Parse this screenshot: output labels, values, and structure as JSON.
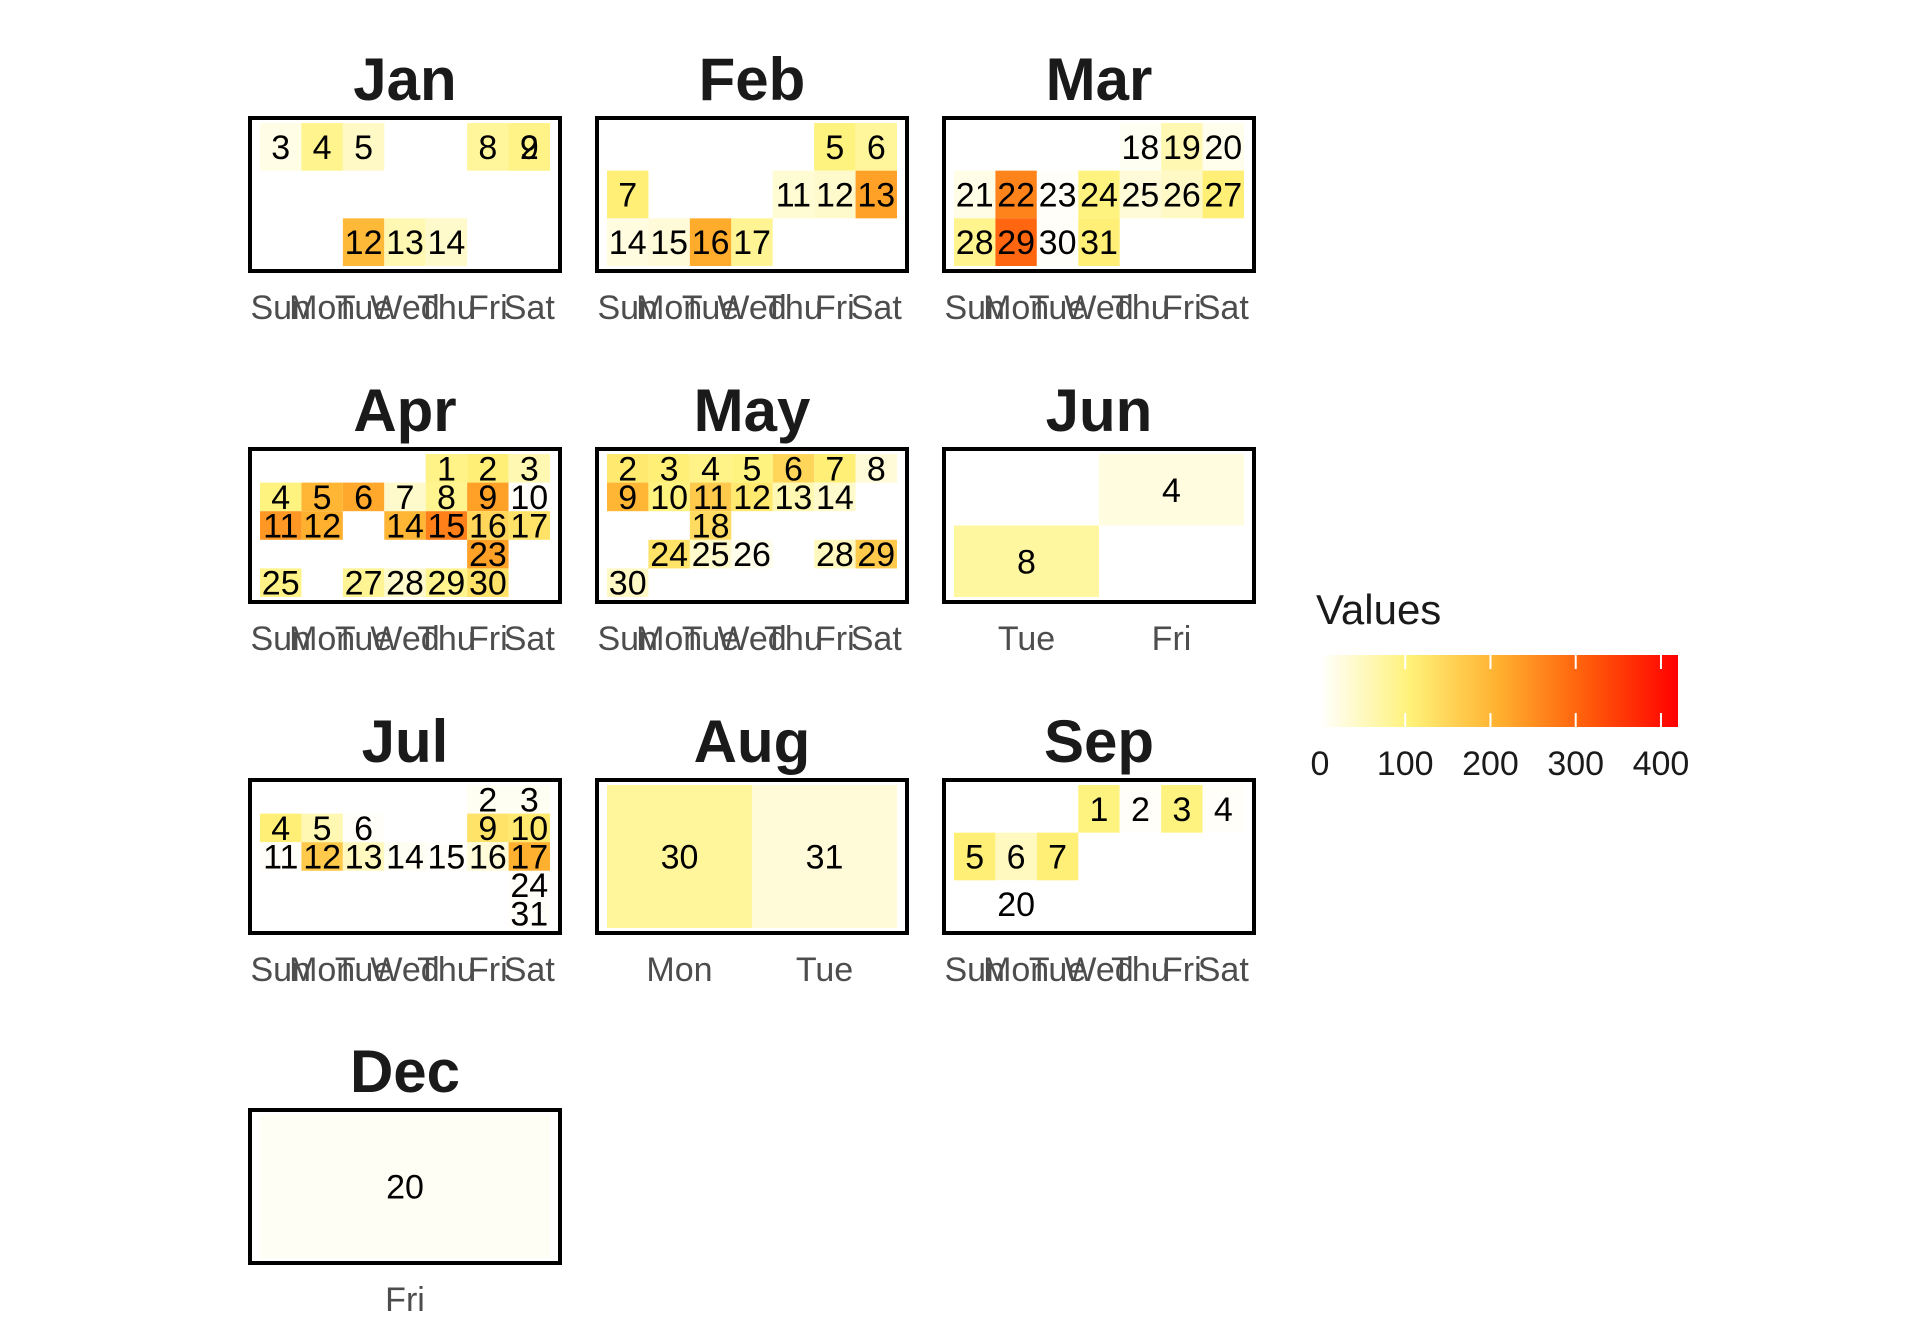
{
  "chart_data": {
    "type": "heatmap",
    "title": "",
    "legend": {
      "title": "Values",
      "ticks": [
        0,
        100,
        200,
        300,
        400
      ],
      "range": [
        0,
        420
      ],
      "position": "right",
      "colors": [
        "#FFFFFF",
        "#FFF27A",
        "#FFB02E",
        "#FF5A0A",
        "#FF0000"
      ]
    },
    "months": [
      {
        "name": "Jan",
        "xticks": [
          "Sun",
          "Mon",
          "Tue",
          "Wed",
          "Thu",
          "Fri",
          "Sat"
        ],
        "cells": [
          {
            "day": "3",
            "col": 0,
            "week": 0,
            "nweeks": 3,
            "value": 20
          },
          {
            "day": "4",
            "col": 1,
            "week": 0,
            "nweeks": 3,
            "value": 90
          },
          {
            "day": "5",
            "col": 2,
            "week": 0,
            "nweeks": 3,
            "value": 45
          },
          {
            "day": "8",
            "col": 5,
            "week": 0,
            "nweeks": 3,
            "value": 80
          },
          {
            "day": "9",
            "col": 6,
            "week": 0,
            "nweeks": 3,
            "value": 95
          },
          {
            "day": "2",
            "col": 6,
            "week": 0,
            "nweeks": 3,
            "value": 95
          },
          {
            "day": "12",
            "col": 2,
            "week": 2,
            "nweeks": 3,
            "value": 195
          },
          {
            "day": "13",
            "col": 3,
            "week": 2,
            "nweeks": 3,
            "value": 60
          },
          {
            "day": "14",
            "col": 4,
            "week": 2,
            "nweeks": 3,
            "value": 40
          }
        ]
      },
      {
        "name": "Feb",
        "xticks": [
          "Sun",
          "Mon",
          "Tue",
          "Wed",
          "Thu",
          "Fri",
          "Sat"
        ],
        "cells": [
          {
            "day": "5",
            "col": 5,
            "week": 0,
            "nweeks": 3,
            "value": 100
          },
          {
            "day": "6",
            "col": 6,
            "week": 0,
            "nweeks": 3,
            "value": 80
          },
          {
            "day": "7",
            "col": 0,
            "week": 1,
            "nweeks": 3,
            "value": 110
          },
          {
            "day": "11",
            "col": 4,
            "week": 1,
            "nweeks": 3,
            "value": 35
          },
          {
            "day": "12",
            "col": 5,
            "week": 1,
            "nweeks": 3,
            "value": 40
          },
          {
            "day": "13",
            "col": 6,
            "week": 1,
            "nweeks": 3,
            "value": 230
          },
          {
            "day": "14",
            "col": 0,
            "week": 2,
            "nweeks": 3,
            "value": 25
          },
          {
            "day": "15",
            "col": 1,
            "week": 2,
            "nweeks": 3,
            "value": 30
          },
          {
            "day": "16",
            "col": 2,
            "week": 2,
            "nweeks": 3,
            "value": 215
          },
          {
            "day": "17",
            "col": 3,
            "week": 2,
            "nweeks": 3,
            "value": 85
          }
        ]
      },
      {
        "name": "Mar",
        "xticks": [
          "Sun",
          "Mon",
          "Tue",
          "Wed",
          "Thu",
          "Fri",
          "Sat"
        ],
        "cells": [
          {
            "day": "18",
            "col": 4,
            "week": 0,
            "nweeks": 3,
            "value": 10
          },
          {
            "day": "19",
            "col": 5,
            "week": 0,
            "nweeks": 3,
            "value": 60
          },
          {
            "day": "20",
            "col": 6,
            "week": 0,
            "nweeks": 3,
            "value": 15
          },
          {
            "day": "21",
            "col": 0,
            "week": 1,
            "nweeks": 3,
            "value": 20
          },
          {
            "day": "22",
            "col": 1,
            "week": 1,
            "nweeks": 3,
            "value": 265
          },
          {
            "day": "23",
            "col": 2,
            "week": 1,
            "nweeks": 3,
            "value": 5
          },
          {
            "day": "24",
            "col": 3,
            "week": 1,
            "nweeks": 3,
            "value": 100
          },
          {
            "day": "25",
            "col": 4,
            "week": 1,
            "nweeks": 3,
            "value": 30
          },
          {
            "day": "26",
            "col": 5,
            "week": 1,
            "nweeks": 3,
            "value": 45
          },
          {
            "day": "27",
            "col": 6,
            "week": 1,
            "nweeks": 3,
            "value": 110
          },
          {
            "day": "28",
            "col": 0,
            "week": 2,
            "nweeks": 3,
            "value": 90
          },
          {
            "day": "29",
            "col": 1,
            "week": 2,
            "nweeks": 3,
            "value": 300
          },
          {
            "day": "30",
            "col": 2,
            "week": 2,
            "nweeks": 3,
            "value": 5
          },
          {
            "day": "31",
            "col": 3,
            "week": 2,
            "nweeks": 3,
            "value": 110
          }
        ]
      },
      {
        "name": "Apr",
        "xticks": [
          "Sun",
          "Mon",
          "Tue",
          "Wed",
          "Thu",
          "Fri",
          "Sat"
        ],
        "cells": [
          {
            "day": "1",
            "col": 4,
            "week": 0,
            "nweeks": 5,
            "value": 95
          },
          {
            "day": "2",
            "col": 5,
            "week": 0,
            "nweeks": 5,
            "value": 110
          },
          {
            "day": "3",
            "col": 6,
            "week": 0,
            "nweeks": 5,
            "value": 60
          },
          {
            "day": "4",
            "col": 0,
            "week": 1,
            "nweeks": 5,
            "value": 100
          },
          {
            "day": "5",
            "col": 1,
            "week": 1,
            "nweeks": 5,
            "value": 200
          },
          {
            "day": "6",
            "col": 2,
            "week": 1,
            "nweeks": 5,
            "value": 220
          },
          {
            "day": "7",
            "col": 3,
            "week": 1,
            "nweeks": 5,
            "value": 40
          },
          {
            "day": "8",
            "col": 4,
            "week": 1,
            "nweeks": 5,
            "value": 90
          },
          {
            "day": "9",
            "col": 5,
            "week": 1,
            "nweeks": 5,
            "value": 230
          },
          {
            "day": "10",
            "col": 6,
            "week": 1,
            "nweeks": 5,
            "value": 5
          },
          {
            "day": "11",
            "col": 0,
            "week": 2,
            "nweeks": 5,
            "value": 240
          },
          {
            "day": "12",
            "col": 1,
            "week": 2,
            "nweeks": 5,
            "value": 210
          },
          {
            "day": "14",
            "col": 3,
            "week": 2,
            "nweeks": 5,
            "value": 200
          },
          {
            "day": "15",
            "col": 4,
            "week": 2,
            "nweeks": 5,
            "value": 270
          },
          {
            "day": "16",
            "col": 5,
            "week": 2,
            "nweeks": 5,
            "value": 150
          },
          {
            "day": "17",
            "col": 6,
            "week": 2,
            "nweeks": 5,
            "value": 130
          },
          {
            "day": "23",
            "col": 5,
            "week": 3,
            "nweeks": 5,
            "value": 230
          },
          {
            "day": "25",
            "col": 0,
            "week": 4,
            "nweeks": 5,
            "value": 95
          },
          {
            "day": "27",
            "col": 2,
            "week": 4,
            "nweeks": 5,
            "value": 85
          },
          {
            "day": "28",
            "col": 3,
            "week": 4,
            "nweeks": 5,
            "value": 40
          },
          {
            "day": "29",
            "col": 4,
            "week": 4,
            "nweeks": 5,
            "value": 90
          },
          {
            "day": "30",
            "col": 5,
            "week": 4,
            "nweeks": 5,
            "value": 130
          }
        ]
      },
      {
        "name": "May",
        "xticks": [
          "Sun",
          "Mon",
          "Tue",
          "Wed",
          "Thu",
          "Fri",
          "Sat"
        ],
        "cells": [
          {
            "day": "2",
            "col": 0,
            "week": 0,
            "nweeks": 5,
            "value": 120
          },
          {
            "day": "3",
            "col": 1,
            "week": 0,
            "nweeks": 5,
            "value": 110
          },
          {
            "day": "4",
            "col": 2,
            "week": 0,
            "nweeks": 5,
            "value": 95
          },
          {
            "day": "5",
            "col": 3,
            "week": 0,
            "nweeks": 5,
            "value": 100
          },
          {
            "day": "6",
            "col": 4,
            "week": 0,
            "nweeks": 5,
            "value": 150
          },
          {
            "day": "7",
            "col": 5,
            "week": 0,
            "nweeks": 5,
            "value": 110
          },
          {
            "day": "8",
            "col": 6,
            "week": 0,
            "nweeks": 5,
            "value": 30
          },
          {
            "day": "9",
            "col": 0,
            "week": 1,
            "nweeks": 5,
            "value": 200
          },
          {
            "day": "10",
            "col": 1,
            "week": 1,
            "nweeks": 5,
            "value": 100
          },
          {
            "day": "11",
            "col": 2,
            "week": 1,
            "nweeks": 5,
            "value": 170
          },
          {
            "day": "12",
            "col": 3,
            "week": 1,
            "nweeks": 5,
            "value": 120
          },
          {
            "day": "13",
            "col": 4,
            "week": 1,
            "nweeks": 5,
            "value": 60
          },
          {
            "day": "14",
            "col": 5,
            "week": 1,
            "nweeks": 5,
            "value": 40
          },
          {
            "day": "18",
            "col": 2,
            "week": 2,
            "nweeks": 5,
            "value": 140
          },
          {
            "day": "24",
            "col": 1,
            "week": 3,
            "nweeks": 5,
            "value": 130
          },
          {
            "day": "25",
            "col": 2,
            "week": 3,
            "nweeks": 5,
            "value": 40
          },
          {
            "day": "26",
            "col": 3,
            "week": 3,
            "nweeks": 5,
            "value": 15
          },
          {
            "day": "28",
            "col": 5,
            "week": 3,
            "nweeks": 5,
            "value": 50
          },
          {
            "day": "29",
            "col": 6,
            "week": 3,
            "nweeks": 5,
            "value": 170
          },
          {
            "day": "30",
            "col": 0,
            "week": 4,
            "nweeks": 5,
            "value": 45
          }
        ]
      },
      {
        "name": "Jun",
        "xticks": [
          "Tue",
          "Fri"
        ],
        "cells": [
          {
            "day": "4",
            "col": 1,
            "week": 0,
            "nweeks": 2,
            "value": 25
          },
          {
            "day": "8",
            "col": 0,
            "week": 1,
            "nweeks": 2,
            "value": 75
          }
        ]
      },
      {
        "name": "Jul",
        "xticks": [
          "Sun",
          "Mon",
          "Tue",
          "Wed",
          "Thu",
          "Fri",
          "Sat"
        ],
        "cells": [
          {
            "day": "2",
            "col": 5,
            "week": 0,
            "nweeks": 5,
            "value": 10
          },
          {
            "day": "3",
            "col": 6,
            "week": 0,
            "nweeks": 5,
            "value": 10
          },
          {
            "day": "4",
            "col": 0,
            "week": 1,
            "nweeks": 5,
            "value": 110
          },
          {
            "day": "5",
            "col": 1,
            "week": 1,
            "nweeks": 5,
            "value": 60
          },
          {
            "day": "6",
            "col": 2,
            "week": 1,
            "nweeks": 5,
            "value": 5
          },
          {
            "day": "9",
            "col": 5,
            "week": 1,
            "nweeks": 5,
            "value": 130
          },
          {
            "day": "10",
            "col": 6,
            "week": 1,
            "nweeks": 5,
            "value": 120
          },
          {
            "day": "11",
            "col": 0,
            "week": 2,
            "nweeks": 5,
            "value": 5
          },
          {
            "day": "12",
            "col": 1,
            "week": 2,
            "nweeks": 5,
            "value": 170
          },
          {
            "day": "13",
            "col": 2,
            "week": 2,
            "nweeks": 5,
            "value": 50
          },
          {
            "day": "14",
            "col": 3,
            "week": 2,
            "nweeks": 5,
            "value": 10
          },
          {
            "day": "15",
            "col": 4,
            "week": 2,
            "nweeks": 5,
            "value": 5
          },
          {
            "day": "16",
            "col": 5,
            "week": 2,
            "nweeks": 5,
            "value": 30
          },
          {
            "day": "17",
            "col": 6,
            "week": 2,
            "nweeks": 5,
            "value": 210
          },
          {
            "day": "24",
            "col": 6,
            "week": 3,
            "nweeks": 5,
            "value": 5
          },
          {
            "day": "31",
            "col": 6,
            "week": 4,
            "nweeks": 5,
            "value": 5
          }
        ]
      },
      {
        "name": "Aug",
        "xticks": [
          "Mon",
          "Tue"
        ],
        "cells": [
          {
            "day": "30",
            "col": 0,
            "week": 0,
            "nweeks": 1,
            "value": 80
          },
          {
            "day": "31",
            "col": 1,
            "week": 0,
            "nweeks": 1,
            "value": 30
          }
        ]
      },
      {
        "name": "Sep",
        "xticks": [
          "Sun",
          "Mon",
          "Tue",
          "Wed",
          "Thu",
          "Fri",
          "Sat"
        ],
        "cells": [
          {
            "day": "1",
            "col": 3,
            "week": 0,
            "nweeks": 3,
            "value": 100
          },
          {
            "day": "2",
            "col": 4,
            "week": 0,
            "nweeks": 3,
            "value": 5
          },
          {
            "day": "3",
            "col": 5,
            "week": 0,
            "nweeks": 3,
            "value": 100
          },
          {
            "day": "4",
            "col": 6,
            "week": 0,
            "nweeks": 3,
            "value": 5
          },
          {
            "day": "5",
            "col": 0,
            "week": 1,
            "nweeks": 3,
            "value": 110
          },
          {
            "day": "6",
            "col": 1,
            "week": 1,
            "nweeks": 3,
            "value": 50
          },
          {
            "day": "7",
            "col": 2,
            "week": 1,
            "nweeks": 3,
            "value": 110
          },
          {
            "day": "20",
            "col": 1,
            "week": 2,
            "nweeks": 3,
            "value": 0
          }
        ]
      },
      {
        "name": "Dec",
        "xticks": [
          "Fri"
        ],
        "cells": [
          {
            "day": "20",
            "col": 0,
            "week": 0,
            "nweeks": 1,
            "value": 8
          }
        ]
      }
    ]
  }
}
